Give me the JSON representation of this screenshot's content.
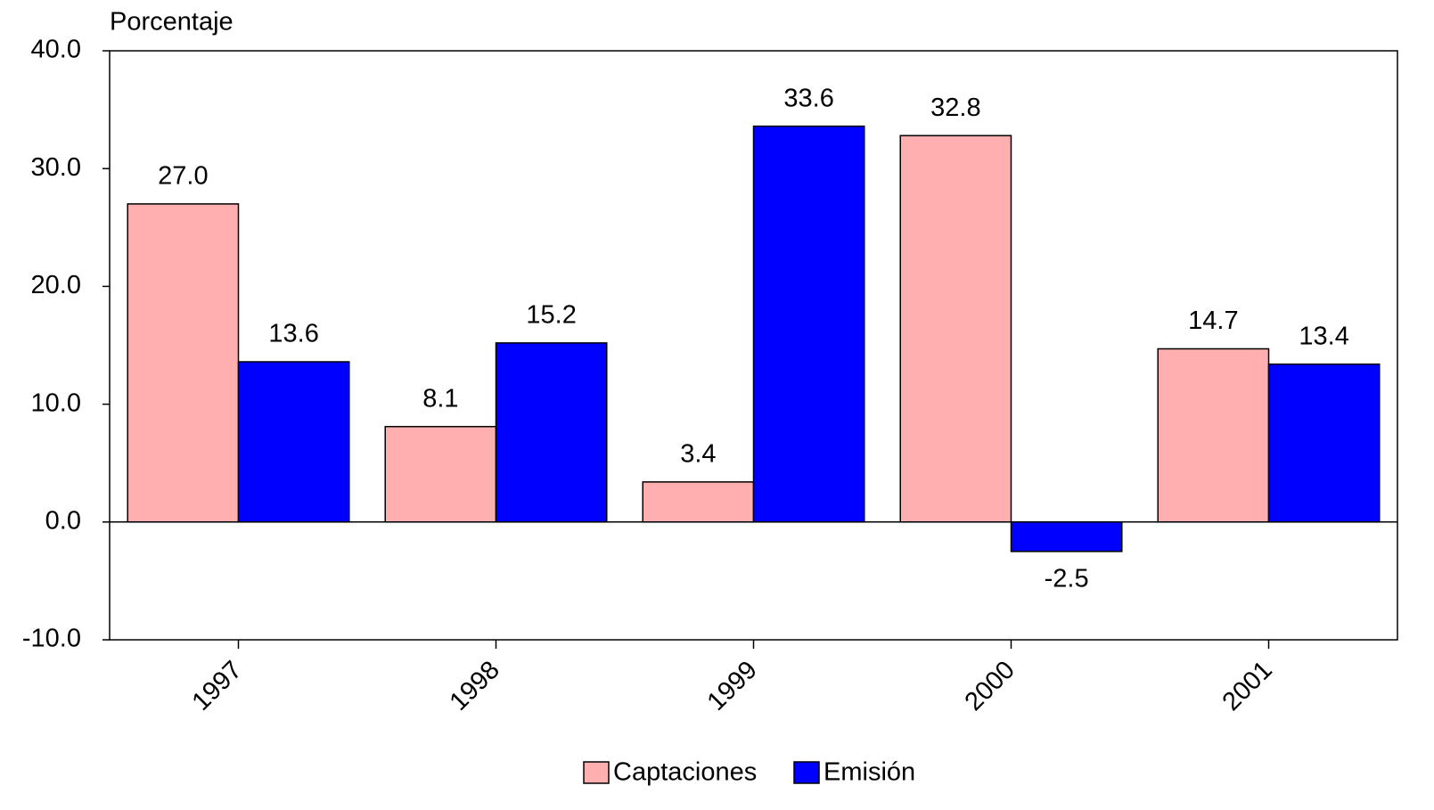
{
  "chart_data": {
    "type": "bar",
    "y_axis_label": "Porcentaje",
    "categories": [
      "1997",
      "1998",
      "1999",
      "2000",
      "2001"
    ],
    "series": [
      {
        "name": "Captaciones",
        "color": "#ffafaf",
        "values": [
          27.0,
          8.1,
          3.4,
          32.8,
          14.7
        ],
        "value_labels": [
          "27.0",
          "8.1",
          "3.4",
          "32.8",
          "14.7"
        ]
      },
      {
        "name": "Emisión",
        "color": "#0000ff",
        "values": [
          13.6,
          15.2,
          33.6,
          -2.5,
          13.4
        ],
        "value_labels": [
          "13.6",
          "15.2",
          "33.6",
          "-2.5",
          "13.4"
        ]
      }
    ],
    "ylim": [
      -10,
      40
    ],
    "yticks": [
      {
        "value": -10,
        "label": "-10.0"
      },
      {
        "value": 0,
        "label": "0.0"
      },
      {
        "value": 10,
        "label": "10.0"
      },
      {
        "value": 20,
        "label": "20.0"
      },
      {
        "value": 30,
        "label": "30.0"
      },
      {
        "value": 40,
        "label": "40.0"
      }
    ],
    "grid": false
  }
}
